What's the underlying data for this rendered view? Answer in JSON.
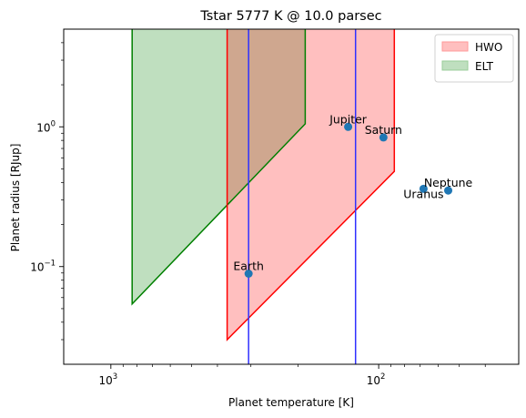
{
  "chart_data": {
    "type": "scatter",
    "title": "Tstar 5777 K @ 10.0 parsec",
    "xlabel": "Planet temperature [K]",
    "ylabel": "Planet radius [RJup]",
    "x_scale": "log",
    "y_scale": "log",
    "x_axis_reversed": true,
    "xlim": [
      1500,
      30
    ],
    "ylim": [
      0.02,
      5
    ],
    "x_ticks": [
      {
        "value": 1000,
        "label_base": "10",
        "label_exp": "3"
      },
      {
        "value": 100,
        "label_base": "10",
        "label_exp": "2"
      }
    ],
    "y_ticks": [
      {
        "value": 1,
        "label_base": "10",
        "label_exp": "0"
      },
      {
        "value": 0.1,
        "label_base": "10",
        "label_exp": "−1"
      }
    ],
    "grid": false,
    "legend_position": "top-right",
    "legend": [
      {
        "label": "HWO",
        "fill": "#ffbfbf",
        "stroke": "#ff9999"
      },
      {
        "label": "ELT",
        "fill": "#bfdfbf",
        "stroke": "#99cc99"
      }
    ],
    "regions": [
      {
        "name": "HWO",
        "fill": "#ff0000",
        "fill_opacity": 0.25,
        "stroke": "#ff0000",
        "polygon": [
          [
            368,
            5
          ],
          [
            368,
            0.03
          ],
          [
            87.4,
            0.48
          ],
          [
            87.4,
            5
          ]
        ]
      },
      {
        "name": "ELT",
        "fill": "#008000",
        "fill_opacity": 0.25,
        "stroke": "#008000",
        "polygon": [
          [
            833,
            5
          ],
          [
            833,
            0.054
          ],
          [
            188,
            1.05
          ],
          [
            188,
            5
          ]
        ]
      }
    ],
    "vertical_lines": [
      {
        "x": 306,
        "color": "#3030ff"
      },
      {
        "x": 122,
        "color": "#3030ff"
      }
    ],
    "points": [
      {
        "name": "Earth",
        "x": 306,
        "y": 0.089,
        "label_anchor": "middle",
        "label_dy": -4
      },
      {
        "name": "Jupiter",
        "x": 130,
        "y": 1.0,
        "label_anchor": "middle",
        "label_dy": -4
      },
      {
        "name": "Saturn",
        "x": 96,
        "y": 0.84,
        "label_anchor": "middle",
        "label_dy": -4
      },
      {
        "name": "Uranus",
        "x": 68,
        "y": 0.36,
        "label_anchor": "middle",
        "label_dy": 10
      },
      {
        "name": "Neptune",
        "x": 55,
        "y": 0.35,
        "label_anchor": "middle",
        "label_dy": -4
      }
    ],
    "point_color": "#1f77b4"
  }
}
